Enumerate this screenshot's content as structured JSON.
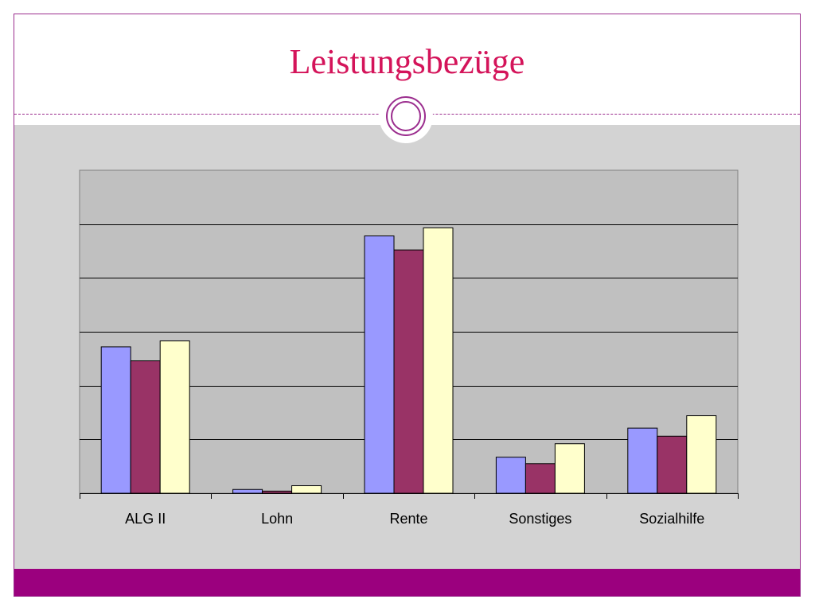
{
  "slide": {
    "title": "Leistungsbezüge"
  },
  "colors": {
    "title": "#d4145a",
    "accent": "#9b007e",
    "content_bg": "#d3d3d3",
    "plot_bg": "#c0c0c0"
  },
  "chart_data": {
    "type": "bar",
    "title": "",
    "xlabel": "",
    "ylabel": "",
    "categories": [
      "ALG II",
      "Lohn",
      "Rente",
      "Sonstiges",
      "Sozialhilfe"
    ],
    "series": [
      {
        "color": "#9999ff",
        "values": [
          27.2,
          0.7,
          47.8,
          6.7,
          12.1
        ]
      },
      {
        "color": "#993366",
        "values": [
          24.6,
          0.4,
          45.2,
          5.5,
          10.6
        ]
      },
      {
        "color": "#ffffcc",
        "values": [
          28.3,
          1.4,
          49.3,
          9.2,
          14.4
        ]
      }
    ],
    "ylim": [
      0,
      60
    ],
    "y_gridlines": [
      10,
      20,
      30,
      40,
      50
    ],
    "y_tick_labels_shown": false,
    "legend": "none",
    "grid": true
  }
}
